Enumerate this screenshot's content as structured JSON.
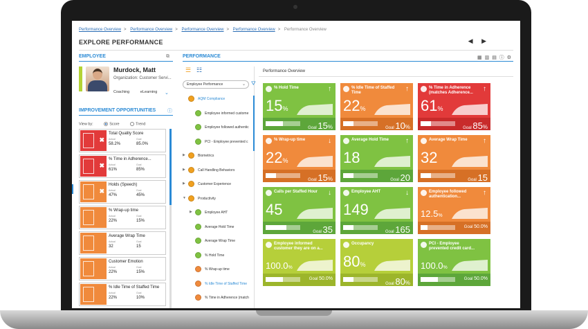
{
  "breadcrumbs": [
    "Performance Overview",
    "Performance Overview",
    "Performance Overview",
    "Performance Overview",
    "Performance Overview"
  ],
  "page_title": "EXPLORE PERFORMANCE",
  "nav_arrows": "◀ ▶",
  "employee": {
    "section_title": "EMPLOYEE",
    "name": "Murdock, Matt",
    "organization": "Organization: Customer Servi...",
    "tabs": [
      "Coaching",
      "eLearning"
    ]
  },
  "improvement": {
    "section_title": "IMPROVEMENT OPPORTUNITIES",
    "view_by_label": "View by:",
    "view_options": [
      {
        "label": "Score",
        "selected": true
      },
      {
        "label": "Trend",
        "selected": false
      }
    ],
    "actual_label": "Actual",
    "goal_label": "Goal",
    "items": [
      {
        "label": "Total Quality Score",
        "actual": "58.2%",
        "goal": "85.0%",
        "color": "#e23a3a",
        "flag": "✖"
      },
      {
        "label": "% Time in Adherence...",
        "actual": "61%",
        "goal": "85%",
        "color": "#e23a3a",
        "flag": "✖"
      },
      {
        "label": "Holds (Speech)",
        "actual": "47%",
        "goal": "45%",
        "color": "#f08a3c",
        "flag": "✖"
      },
      {
        "label": "% Wrap-up time",
        "actual": "22%",
        "goal": "15%",
        "color": "#f08a3c",
        "flag": ""
      },
      {
        "label": "Average Wrap Time",
        "actual": "32",
        "goal": "15",
        "color": "#f08a3c",
        "flag": ""
      },
      {
        "label": "Customer Emotion",
        "actual": "22%",
        "goal": "15%",
        "color": "#f08a3c",
        "flag": ""
      },
      {
        "label": "% Idle Time of Staffed Time",
        "actual": "22%",
        "goal": "10%",
        "color": "#f08a3c",
        "flag": ""
      }
    ]
  },
  "performance": {
    "section_title": "PERFORMANCE",
    "panel_title": "Performance Overview",
    "selector_value": "Employee Performance",
    "tree": [
      {
        "label": "AQM Compliance",
        "level": 0,
        "color": "#f0a020",
        "expanded": true,
        "highlight": true
      },
      {
        "label": "Employee informed custome",
        "level": 1,
        "color": "#7fc242"
      },
      {
        "label": "Employee followed authentic",
        "level": 1,
        "color": "#7fc242"
      },
      {
        "label": "PCI - Employee prevented c",
        "level": 1,
        "color": "#7fc242"
      },
      {
        "label": "Biometrics",
        "level": 0,
        "color": "#f0a020",
        "arrow": "▶"
      },
      {
        "label": "Call Handling Behaviors",
        "level": 0,
        "color": "#f0a020",
        "arrow": "▶"
      },
      {
        "label": "Customer Experience",
        "level": 0,
        "color": "#f0a020",
        "arrow": "▶"
      },
      {
        "label": "Productivity",
        "level": 0,
        "color": "#f0a020",
        "arrow": "▼"
      },
      {
        "label": "Employee AHT",
        "level": 1,
        "color": "#7fc242",
        "arrow": "▶"
      },
      {
        "label": "Average Hold Time",
        "level": 1,
        "color": "#7fc242"
      },
      {
        "label": "Average Wrap Time",
        "level": 1,
        "color": "#7fc242"
      },
      {
        "label": "% Hold Time",
        "level": 1,
        "color": "#7fc242"
      },
      {
        "label": "% Wrap-up time",
        "level": 1,
        "color": "#f08a3c"
      },
      {
        "label": "% Idle Time of Staffed Time",
        "level": 1,
        "color": "#f08a3c",
        "highlight": true
      },
      {
        "label": "% Time in Adherence (match",
        "level": 1,
        "color": "#f08a3c"
      }
    ],
    "tiles": [
      {
        "title": "% Hold Time",
        "value": "15",
        "unit": "%",
        "goal": "15",
        "goal_unit": "%",
        "theme": "g",
        "trend": "↑",
        "progress": 0.5
      },
      {
        "title": "% Idle Time of Staffed Time",
        "value": "22",
        "unit": "%",
        "goal": "10",
        "goal_unit": "%",
        "theme": "o",
        "trend": "↑",
        "progress": 0.3
      },
      {
        "title": "% Time in Adherence (matches Adherence...",
        "value": "61",
        "unit": "%",
        "goal": "85",
        "goal_unit": "%",
        "theme": "r",
        "trend": "↑",
        "progress": 0.3
      },
      {
        "title": "% Wrap-up time",
        "value": "22",
        "unit": "%",
        "goal": "15",
        "goal_unit": "%",
        "theme": "o",
        "trend": "↓",
        "progress": 0.3
      },
      {
        "title": "Average Hold Time",
        "value": "18",
        "unit": "",
        "goal": "20",
        "goal_unit": "",
        "theme": "g",
        "trend": "↑",
        "progress": 0.3
      },
      {
        "title": "Average Wrap Time",
        "value": "32",
        "unit": "",
        "goal": "15",
        "goal_unit": "",
        "theme": "o",
        "trend": "↑",
        "progress": 0.3
      },
      {
        "title": "Calls per Staffed Hour",
        "value": "45",
        "unit": "",
        "goal": "35",
        "goal_unit": "",
        "theme": "g",
        "trend": "↓",
        "progress": 0.6
      },
      {
        "title": "Employee AHT",
        "value": "149",
        "unit": "",
        "goal": "165",
        "goal_unit": "",
        "theme": "g",
        "trend": "↓",
        "progress": 0.3
      },
      {
        "title": "Employee followed authentication...",
        "value": "12.5",
        "unit": "%",
        "goal": "50.0",
        "goal_unit": "%",
        "theme": "o",
        "trend": "↑",
        "progress": 0.2,
        "small": true
      },
      {
        "title": "Employee informed customer they are on a...",
        "value": "100.0",
        "unit": "%",
        "goal": "50.0",
        "goal_unit": "%",
        "theme": "y",
        "trend": "",
        "progress": 0.5,
        "small": true
      },
      {
        "title": "Occupancy",
        "value": "80",
        "unit": "%",
        "goal": "80",
        "goal_unit": "%",
        "theme": "y",
        "trend": "",
        "progress": 0.3
      },
      {
        "title": "PCI - Employee prevented credit card...",
        "value": "100.0",
        "unit": "%",
        "goal": "50.0",
        "goal_unit": "%",
        "theme": "g",
        "trend": "",
        "progress": 0.5,
        "small": true
      }
    ],
    "goal_label": "Goal"
  }
}
